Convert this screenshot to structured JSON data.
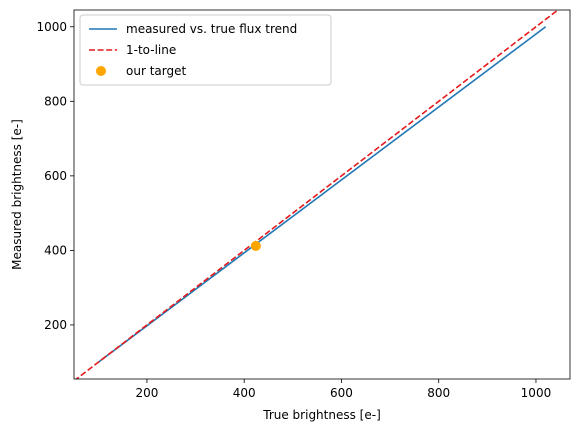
{
  "chart_data": {
    "type": "line",
    "xlabel": "True brightness [e-]",
    "ylabel": "Measured brightness [e-]",
    "xlim": [
      50,
      1070
    ],
    "ylim": [
      55,
      1045
    ],
    "x_ticks": [
      200,
      400,
      600,
      800,
      1000
    ],
    "y_ticks": [
      200,
      400,
      600,
      800,
      1000
    ],
    "x_tick_labels": [
      "200",
      "400",
      "600",
      "800",
      "1000"
    ],
    "y_tick_labels": [
      "200",
      "400",
      "600",
      "800",
      "1000"
    ],
    "grid": false,
    "legend_position": "top-left",
    "series": [
      {
        "name": "measured vs. true flux trend",
        "kind": "line",
        "style": "solid",
        "color": "#1f77b4",
        "x": [
          100,
          1020
        ],
        "y": [
          100,
          1000
        ]
      },
      {
        "name": "1-to-line",
        "kind": "line",
        "style": "dashed",
        "color": "#e41a1c",
        "x": [
          50,
          1070
        ],
        "y": [
          50,
          1070
        ]
      },
      {
        "name": "our target",
        "kind": "scatter",
        "color": "#ffa500",
        "x": [
          424
        ],
        "y": [
          412
        ]
      }
    ]
  }
}
